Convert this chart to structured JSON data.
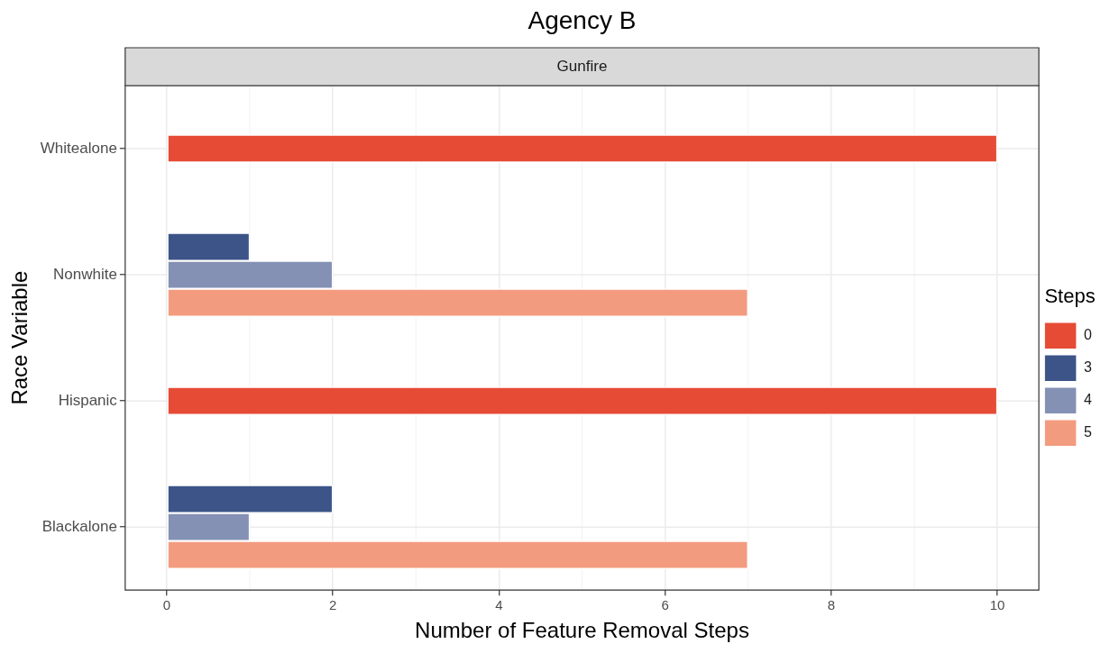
{
  "chart_data": {
    "type": "bar",
    "orientation": "horizontal",
    "title": "Agency B",
    "subtitle": "Gunfire",
    "xlabel": "Number of Feature Removal Steps",
    "ylabel": "Race Variable",
    "legend_title": "Steps",
    "legend": "right",
    "grid": true,
    "categories": [
      "Whitealone",
      "Nonwhite",
      "Hispanic",
      "Blackalone"
    ],
    "series": [
      {
        "name": "0",
        "color": "#e64b35",
        "values": [
          10,
          null,
          10,
          null
        ]
      },
      {
        "name": "3",
        "color": "#3c5488",
        "values": [
          null,
          1,
          null,
          2
        ]
      },
      {
        "name": "4",
        "color": "#8491b4",
        "values": [
          null,
          2,
          null,
          1
        ]
      },
      {
        "name": "5",
        "color": "#f39b7f",
        "values": [
          null,
          7,
          null,
          7
        ]
      }
    ],
    "xlim": [
      -0.5,
      10.5
    ],
    "xticks": [
      0,
      2,
      4,
      6,
      8,
      10
    ]
  }
}
